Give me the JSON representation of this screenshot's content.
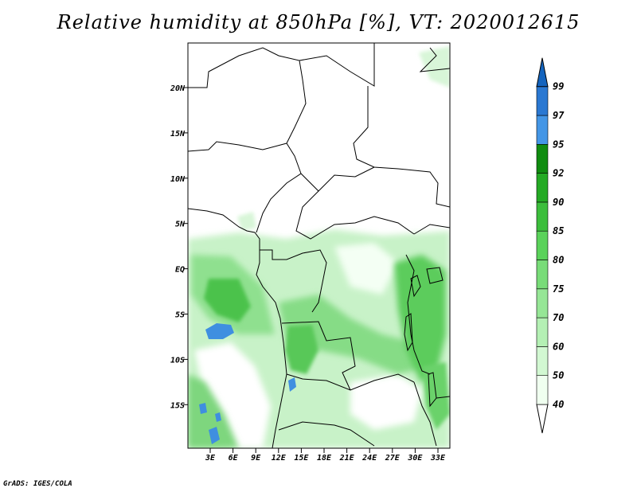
{
  "title": "Relative humidity at 850hPa [%], VT: 2020012615",
  "credit": "GrADS: IGES/COLA",
  "map": {
    "lon_range": [
      0,
      35
    ],
    "lat_range": [
      -20,
      25
    ],
    "lat_ticks": [
      "20N",
      "15N",
      "10N",
      "5N",
      "EQ",
      "5S",
      "10S",
      "15S"
    ],
    "lon_ticks": [
      "3E",
      "6E",
      "9E",
      "12E",
      "15E",
      "18E",
      "21E",
      "24E",
      "27E",
      "30E",
      "33E"
    ]
  },
  "colorbar": {
    "levels": [
      "40",
      "50",
      "60",
      "70",
      "75",
      "80",
      "85",
      "90",
      "92",
      "95",
      "97",
      "99"
    ],
    "colors": [
      "#f0fff0",
      "#d2f8d2",
      "#b4f0b4",
      "#96e696",
      "#78dc78",
      "#5ad25a",
      "#3cbe3c",
      "#24aa24",
      "#108c10",
      "#4496e6",
      "#2a78d2",
      "#1464be"
    ]
  }
}
